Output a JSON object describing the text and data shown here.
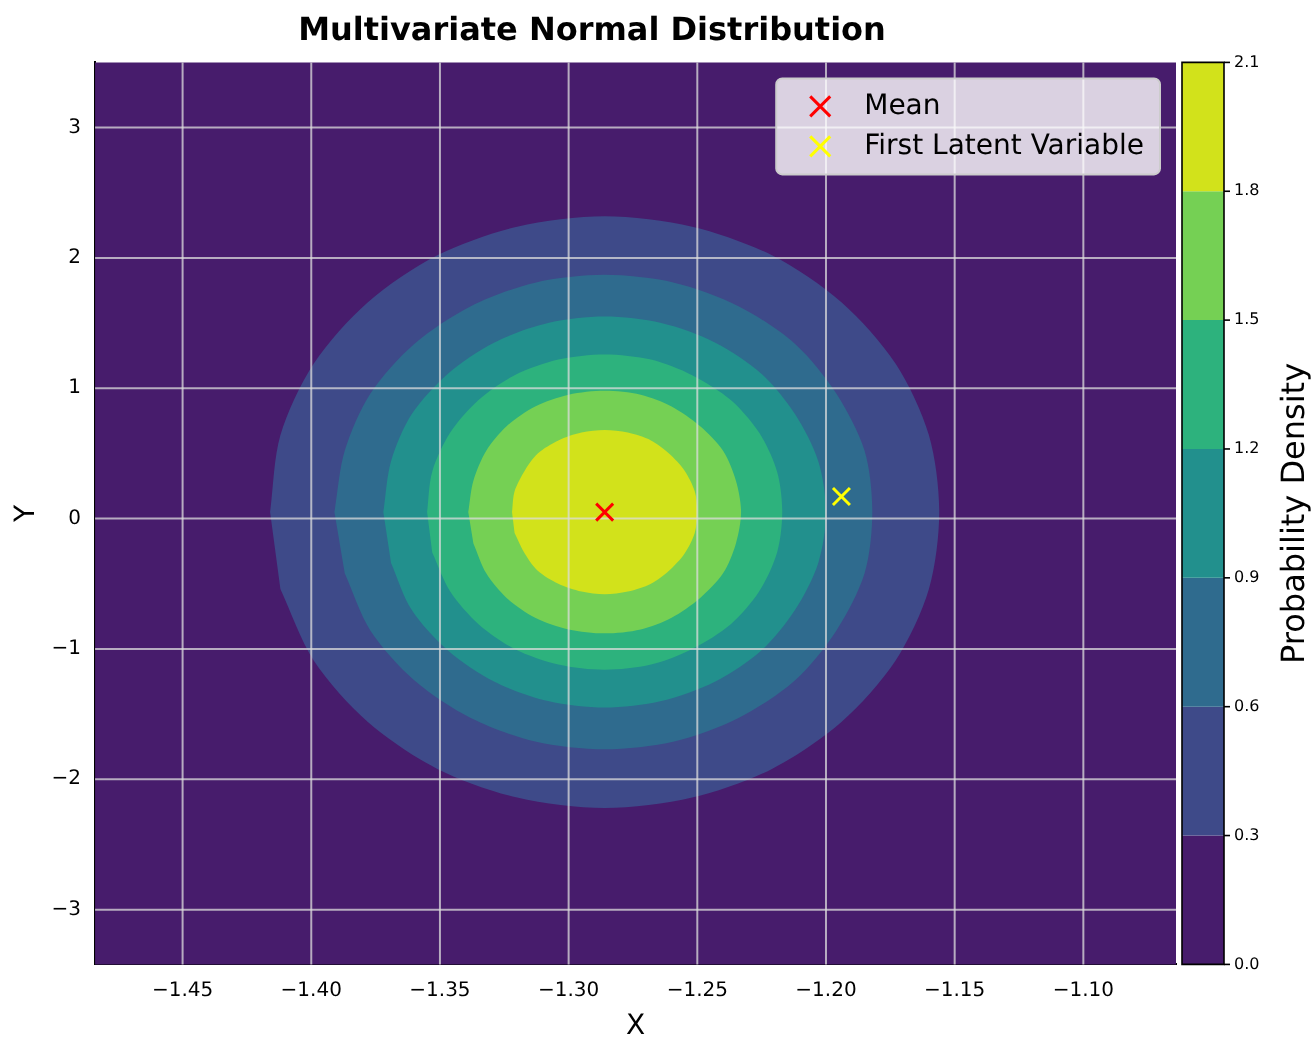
{
  "chart_data": {
    "type": "scatter",
    "title": "Multivariate Normal Distribution",
    "xlabel": "X",
    "ylabel": "Y",
    "clabel": "Probability Density",
    "xlim": [
      -1.484,
      -1.064
    ],
    "ylim": [
      -3.42,
      3.5
    ],
    "xticks": [
      {
        "value": -1.45,
        "label": "−1.45"
      },
      {
        "value": -1.4,
        "label": "−1.40"
      },
      {
        "value": -1.35,
        "label": "−1.35"
      },
      {
        "value": -1.3,
        "label": "−1.30"
      },
      {
        "value": -1.25,
        "label": "−1.25"
      },
      {
        "value": -1.2,
        "label": "−1.20"
      },
      {
        "value": -1.15,
        "label": "−1.15"
      },
      {
        "value": -1.1,
        "label": "−1.10"
      }
    ],
    "yticks": [
      {
        "value": -3,
        "label": "−3"
      },
      {
        "value": -2,
        "label": "−2"
      },
      {
        "value": -1,
        "label": "−1"
      },
      {
        "value": 0,
        "label": "0"
      },
      1,
      2,
      3
    ],
    "clim": [
      0,
      2.1
    ],
    "cticks": [
      {
        "value": 0,
        "label": "0.0"
      },
      0.3,
      0.6,
      0.9,
      1.2,
      1.5,
      1.8,
      2.1
    ],
    "colors": [
      "#471c6c",
      "#3e4a89",
      "#2f6b8e",
      "#22908d",
      "#2db27d",
      "#75d054",
      "#d2e21b"
    ],
    "grid": true,
    "legend": "top right",
    "series": [
      {
        "type": "area",
        "color": "#3e4a89",
        "x": [
          -1.416,
          -1.412,
          -1.399,
          -1.378,
          -1.351,
          -1.32,
          -1.286,
          -1.252,
          -1.221,
          -1.194,
          -1.173,
          -1.16,
          -1.156,
          -1.16,
          -1.173,
          -1.194,
          -1.221,
          -1.252,
          -1.286,
          -1.32,
          -1.351,
          -1.378,
          -1.399,
          -1.412
        ],
        "values": [
          0.05,
          0.64,
          1.19,
          1.66,
          2.02,
          2.24,
          2.32,
          2.24,
          2.02,
          1.66,
          1.19,
          0.64,
          0.05,
          -0.54,
          -1.09,
          -1.56,
          -1.92,
          -2.14,
          -2.22,
          -2.14,
          -1.92,
          -1.56,
          -1.09,
          -0.54
        ]
      },
      {
        "type": "area",
        "color": "#2f6b8e",
        "x": [
          -1.391,
          -1.387,
          -1.377,
          -1.36,
          -1.338,
          -1.313,
          -1.286,
          -1.259,
          -1.234,
          -1.212,
          -1.196,
          -1.185,
          -1.182,
          -1.185,
          -1.196,
          -1.212,
          -1.234,
          -1.259,
          -1.286,
          -1.313,
          -1.338,
          -1.36,
          -1.377,
          -1.387
        ],
        "values": [
          0.05,
          0.52,
          0.96,
          1.34,
          1.63,
          1.81,
          1.87,
          1.81,
          1.63,
          1.34,
          0.96,
          0.52,
          0.05,
          -0.42,
          -0.86,
          -1.24,
          -1.53,
          -1.71,
          -1.77,
          -1.71,
          -1.53,
          -1.24,
          -0.86,
          -0.42
        ]
      },
      {
        "type": "area",
        "color": "#22908d",
        "x": [
          -1.372,
          -1.369,
          -1.361,
          -1.347,
          -1.329,
          -1.308,
          -1.286,
          -1.264,
          -1.243,
          -1.225,
          -1.212,
          -1.203,
          -1.2,
          -1.203,
          -1.212,
          -1.225,
          -1.243,
          -1.264,
          -1.286,
          -1.308,
          -1.329,
          -1.347,
          -1.361,
          -1.369
        ],
        "values": [
          0.05,
          0.44,
          0.8,
          1.11,
          1.35,
          1.5,
          1.55,
          1.5,
          1.35,
          1.11,
          0.8,
          0.44,
          0.05,
          -0.34,
          -0.7,
          -1.01,
          -1.25,
          -1.4,
          -1.45,
          -1.4,
          -1.25,
          -1.01,
          -0.7,
          -0.34
        ]
      },
      {
        "type": "area",
        "color": "#2db27d",
        "x": [
          -1.355,
          -1.353,
          -1.346,
          -1.335,
          -1.321,
          -1.304,
          -1.286,
          -1.268,
          -1.252,
          -1.237,
          -1.226,
          -1.219,
          -1.217,
          -1.219,
          -1.226,
          -1.237,
          -1.252,
          -1.268,
          -1.286,
          -1.304,
          -1.321,
          -1.335,
          -1.346,
          -1.353
        ],
        "values": [
          0.05,
          0.36,
          0.66,
          0.91,
          1.1,
          1.22,
          1.26,
          1.22,
          1.1,
          0.91,
          0.66,
          0.36,
          0.05,
          -0.26,
          -0.56,
          -0.81,
          -1.0,
          -1.12,
          -1.16,
          -1.12,
          -1.0,
          -0.81,
          -0.56,
          -0.26
        ]
      },
      {
        "type": "area",
        "color": "#75d054",
        "x": [
          -1.339,
          -1.337,
          -1.332,
          -1.324,
          -1.313,
          -1.3,
          -1.286,
          -1.272,
          -1.26,
          -1.249,
          -1.24,
          -1.235,
          -1.233,
          -1.235,
          -1.24,
          -1.249,
          -1.26,
          -1.272,
          -1.286,
          -1.3,
          -1.313,
          -1.324,
          -1.332,
          -1.337
        ],
        "values": [
          0.05,
          0.29,
          0.52,
          0.71,
          0.86,
          0.95,
          0.98,
          0.95,
          0.86,
          0.71,
          0.52,
          0.29,
          0.05,
          -0.19,
          -0.42,
          -0.61,
          -0.76,
          -0.85,
          -0.88,
          -0.85,
          -0.76,
          -0.61,
          -0.42,
          -0.19
        ]
      },
      {
        "type": "area",
        "color": "#d2e21b",
        "x": [
          -1.322,
          -1.321,
          -1.317,
          -1.312,
          -1.304,
          -1.295,
          -1.286,
          -1.277,
          -1.268,
          -1.261,
          -1.255,
          -1.251,
          -1.25,
          -1.251,
          -1.255,
          -1.261,
          -1.268,
          -1.277,
          -1.286,
          -1.295,
          -1.304,
          -1.312,
          -1.317,
          -1.321
        ],
        "values": [
          0.05,
          0.21,
          0.37,
          0.5,
          0.6,
          0.66,
          0.68,
          0.66,
          0.6,
          0.5,
          0.37,
          0.21,
          0.05,
          -0.11,
          -0.27,
          -0.4,
          -0.5,
          -0.56,
          -0.58,
          -0.56,
          -0.5,
          -0.4,
          -0.27,
          -0.11
        ]
      },
      {
        "name": "Mean",
        "color": "#ff0000",
        "marker": "cross",
        "x": [
          -1.286
        ],
        "values": [
          0.05
        ]
      },
      {
        "name": "First Latent Variable",
        "color": "#ffff00",
        "marker": "cross",
        "x": [
          -1.194
        ],
        "values": [
          0.17
        ]
      }
    ]
  }
}
